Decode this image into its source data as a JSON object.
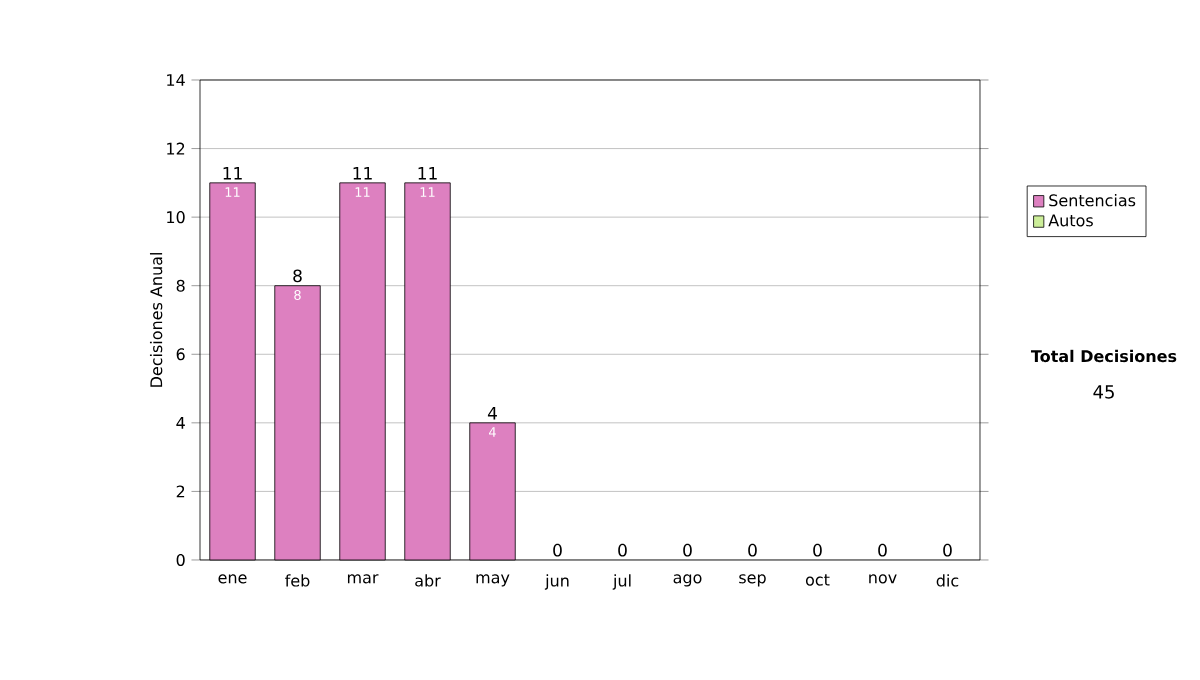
{
  "chart_data": {
    "type": "bar",
    "stacked": true,
    "ylabel": "Decisiones Anual",
    "categories": [
      "ene",
      "feb",
      "mar",
      "abr",
      "may",
      "jun",
      "jul",
      "ago",
      "sep",
      "oct",
      "nov",
      "dic"
    ],
    "series": [
      {
        "name": "Sentencias",
        "color": "#dd80c0",
        "values": [
          11,
          8,
          11,
          11,
          4,
          0,
          0,
          0,
          0,
          0,
          0,
          0
        ],
        "value_labels": [
          "11",
          "8",
          "11",
          "11",
          "4",
          null,
          null,
          null,
          null,
          null,
          null,
          null
        ]
      },
      {
        "name": "Autos",
        "color": "#ccee99",
        "values": [
          0,
          0,
          0,
          0,
          0,
          0,
          0,
          0,
          0,
          0,
          0,
          0
        ]
      }
    ],
    "totals": [
      "11",
      "8",
      "11",
      "11",
      "4",
      "0",
      "0",
      "0",
      "0",
      "0",
      "0",
      "0"
    ],
    "ylim": [
      0,
      14
    ],
    "yticks": [
      0,
      2,
      4,
      6,
      8,
      10,
      12,
      14
    ],
    "grid": "y",
    "legend": "right",
    "annotations": [
      "Total Decisiones",
      "45"
    ]
  }
}
